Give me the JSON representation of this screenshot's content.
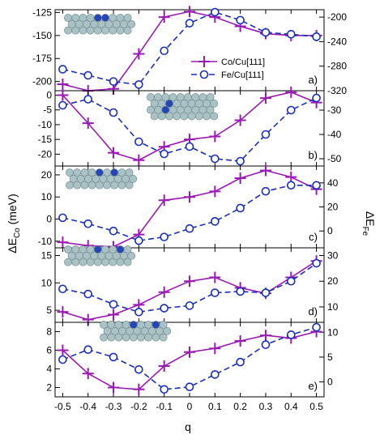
{
  "figure": {
    "xlabel": "q",
    "ylabel_left": "ΔE",
    "ylabel_left_sub": "Co",
    "ylabel_left_unit": " (meV)",
    "ylabel_right": "ΔE",
    "ylabel_right_sub": "Fe"
  },
  "legend": {
    "co_label": "Co/Cu[111]",
    "fe_label": "Fe/Cu[111]"
  },
  "colors": {
    "co": "#9b19b4",
    "fe": "#1a2fb8",
    "atom": "#a9c2c5",
    "atom_highlight": "#2346b8"
  },
  "chart_data": [
    {
      "type": "line",
      "panel": "a)",
      "x": [
        -0.5,
        -0.4,
        -0.3,
        -0.2,
        -0.1,
        0,
        0.1,
        0.2,
        0.3,
        0.4,
        0.5
      ],
      "ylim_left": [
        -210,
        -122
      ],
      "yticks_left": [
        -200,
        -175,
        -150,
        -125
      ],
      "ylim_right": [
        -320,
        -188
      ],
      "yticks_right": [
        -320,
        -280,
        -240,
        -200
      ],
      "series": [
        {
          "name": "Co/Cu[111]",
          "axis": "left",
          "values": [
            -203,
            -210,
            -208,
            -170,
            -130,
            -124,
            -130,
            -140,
            -148,
            -150,
            -150
          ]
        },
        {
          "name": "Fe/Cu[111]",
          "axis": "right",
          "values": [
            -285,
            -295,
            -305,
            -310,
            -255,
            -210,
            -192,
            -205,
            -225,
            -228,
            -232
          ]
        }
      ],
      "inset_highlight": [
        4,
        5
      ],
      "inset_rows": 3
    },
    {
      "type": "line",
      "panel": "b)",
      "x": [
        -0.5,
        -0.4,
        -0.3,
        -0.2,
        -0.1,
        0,
        0.1,
        0.2,
        0.3,
        0.4,
        0.5
      ],
      "ylim_left": [
        -24,
        1.5
      ],
      "yticks_left": [
        -20,
        -15,
        -10,
        -5,
        0
      ],
      "ylim_right": [
        -53,
        -22
      ],
      "yticks_right": [
        -50,
        -40,
        -30
      ],
      "series": [
        {
          "name": "Co/Cu[111]",
          "axis": "left",
          "values": [
            0,
            -9.5,
            -19.5,
            -22,
            -17.5,
            -15,
            -14,
            -8.5,
            -1,
            1,
            -2.5
          ]
        },
        {
          "name": "Fe/Cu[111]",
          "axis": "right",
          "values": [
            -28,
            -25.5,
            -31,
            -43,
            -48,
            -45,
            -50,
            -51,
            -40,
            -30,
            -25
          ]
        }
      ],
      "inset_highlight": [
        11,
        20
      ],
      "inset_rows": 4
    },
    {
      "type": "line",
      "panel": "c)",
      "x": [
        -0.5,
        -0.4,
        -0.3,
        -0.2,
        -0.1,
        0,
        0.1,
        0.2,
        0.3,
        0.4,
        0.5
      ],
      "ylim_left": [
        -13,
        24
      ],
      "yticks_left": [
        -10,
        0,
        10,
        20
      ],
      "ylim_right": [
        -14,
        54
      ],
      "yticks_right": [
        0,
        20,
        40
      ],
      "series": [
        {
          "name": "Co/Cu[111]",
          "axis": "left",
          "values": [
            -10.5,
            -12,
            -12.5,
            -7,
            8.5,
            10,
            12.5,
            18.5,
            22,
            19,
            13.5
          ]
        },
        {
          "name": "Fe/Cu[111]",
          "axis": "right",
          "values": [
            11,
            6,
            0,
            -8,
            -5,
            2,
            8,
            19,
            33,
            38,
            38
          ]
        }
      ],
      "inset_highlight": [
        4,
        6
      ],
      "inset_rows": 3
    },
    {
      "type": "line",
      "panel": "d)",
      "x": [
        -0.5,
        -0.4,
        -0.3,
        -0.2,
        -0.1,
        0,
        0.1,
        0.2,
        0.3,
        0.4,
        0.5
      ],
      "ylim_left": [
        2.8,
        16.4
      ],
      "yticks_left": [
        5,
        10,
        15
      ],
      "ylim_right": [
        4,
        33
      ],
      "yticks_right": [
        10,
        20,
        30
      ],
      "series": [
        {
          "name": "Co/Cu[111]",
          "axis": "left",
          "values": [
            4.7,
            3.3,
            4.2,
            6,
            8.3,
            10.3,
            11,
            9.1,
            8.1,
            11,
            14
          ]
        },
        {
          "name": "Fe/Cu[111]",
          "axis": "right",
          "values": [
            17,
            15,
            11,
            8,
            9.5,
            10.5,
            15.5,
            16,
            15.5,
            20,
            27
          ]
        }
      ],
      "inset_highlight": [
        4,
        7
      ],
      "inset_rows": 3
    },
    {
      "type": "line",
      "panel": "e)",
      "x": [
        -0.5,
        -0.4,
        -0.3,
        -0.2,
        -0.1,
        0,
        0.1,
        0.2,
        0.3,
        0.4,
        0.5
      ],
      "ylim_left": [
        1,
        9
      ],
      "yticks_left": [
        2,
        4,
        6,
        8
      ],
      "ylim_right": [
        -3,
        12
      ],
      "yticks_right": [
        0,
        5,
        10
      ],
      "series": [
        {
          "name": "Co/Cu[111]",
          "axis": "left",
          "values": [
            6,
            3.5,
            2,
            1.8,
            4.3,
            5.8,
            6.2,
            7,
            7.6,
            7.3,
            8
          ]
        },
        {
          "name": "Fe/Cu[111]",
          "axis": "right",
          "values": [
            4.5,
            6.5,
            5,
            2.5,
            -1.5,
            -1,
            1.5,
            4,
            7.5,
            9.5,
            11
          ]
        }
      ],
      "inset_highlight": [
        4,
        7
      ],
      "inset_rows": 3
    }
  ]
}
